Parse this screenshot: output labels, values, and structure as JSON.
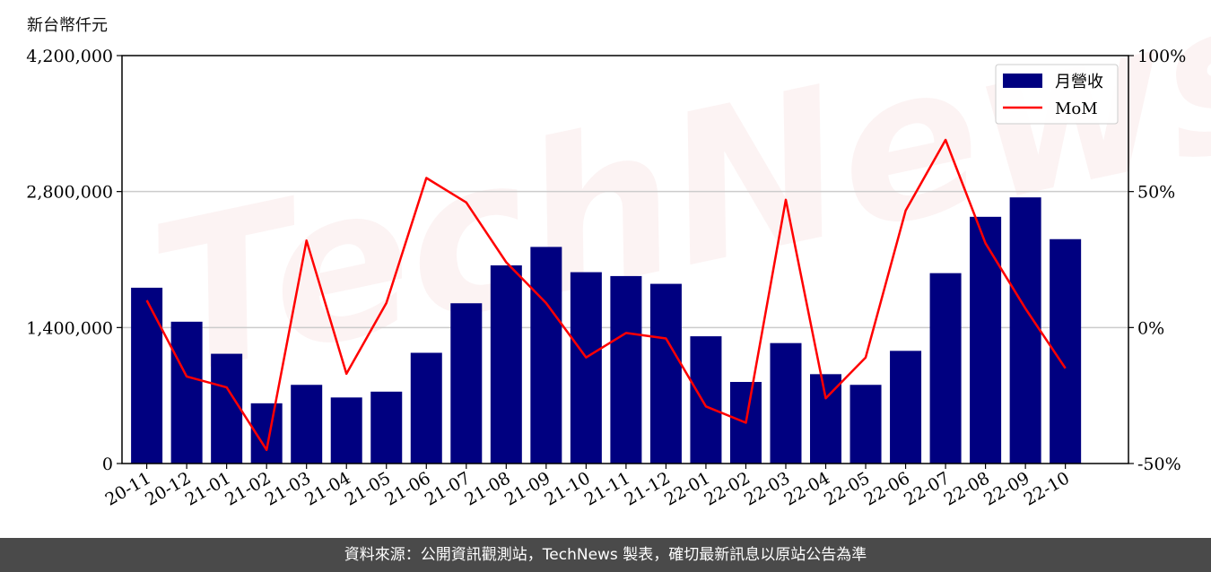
{
  "header": {
    "unit_label": "新台幣仟元"
  },
  "watermark": "TechNews",
  "footer": {
    "text": "資料來源：公開資訊觀測站，TechNews 製表，確切最新訊息以原站公告為準"
  },
  "colors": {
    "bar": "#000080",
    "line": "#ff0000",
    "grid": "#cccccc",
    "footer_bg": "#4a4a4a"
  },
  "chart_data": {
    "type": "bar",
    "categories": [
      "20-11",
      "20-12",
      "21-01",
      "21-02",
      "21-03",
      "21-04",
      "21-05",
      "21-06",
      "21-07",
      "21-08",
      "21-09",
      "21-10",
      "21-11",
      "21-12",
      "22-01",
      "22-02",
      "22-03",
      "22-04",
      "22-05",
      "22-06",
      "22-07",
      "22-08",
      "22-09",
      "22-10"
    ],
    "series": [
      {
        "name": "月營收",
        "type": "bar",
        "axis": "left",
        "values": [
          1810000,
          1460000,
          1130000,
          620000,
          810000,
          680000,
          740000,
          1140000,
          1650000,
          2040000,
          2230000,
          1970000,
          1930000,
          1850000,
          1310000,
          840000,
          1240000,
          920000,
          810000,
          1160000,
          1960000,
          2540000,
          2740000,
          2310000
        ]
      },
      {
        "name": "MoM",
        "type": "line",
        "axis": "right",
        "values": [
          10,
          -18,
          -22,
          -45,
          32,
          -17,
          9,
          55,
          46,
          24,
          9,
          -11,
          -2,
          -4,
          -29,
          -35,
          47,
          -26,
          -11,
          43,
          69,
          31,
          7,
          -15
        ]
      }
    ],
    "left_axis": {
      "min": 0,
      "max": 4200000,
      "ticks": [
        "0",
        "1,400,000",
        "2,800,000",
        "4,200,000"
      ],
      "tick_values": [
        0,
        1400000,
        2800000,
        4200000
      ]
    },
    "right_axis": {
      "min": -50,
      "max": 100,
      "ticks": [
        "-50%",
        "0%",
        "50%",
        "100%"
      ],
      "tick_values": [
        -50,
        0,
        50,
        100
      ]
    },
    "grid": "horizontal",
    "legend_position": "top-right"
  }
}
